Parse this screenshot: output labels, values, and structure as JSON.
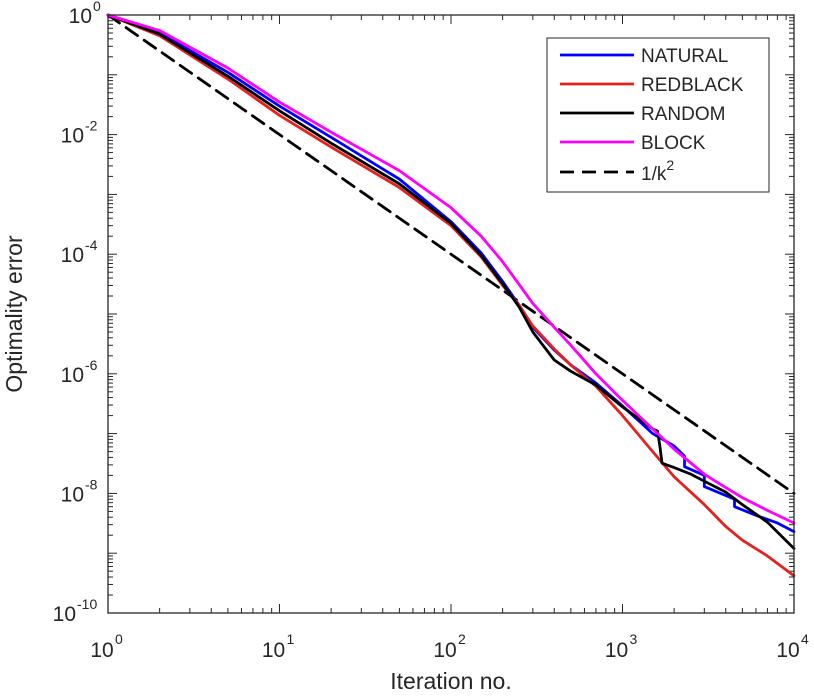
{
  "chart_data": {
    "type": "line",
    "title": "",
    "xlabel": "Iteration no.",
    "ylabel": "Optimality error",
    "xscale": "log",
    "yscale": "log",
    "xlim": [
      1,
      10000
    ],
    "ylim": [
      1e-10,
      1
    ],
    "grid": false,
    "legend_position": "top-right",
    "x_ticks": [
      {
        "base": "10",
        "exp": "0",
        "value": 1
      },
      {
        "base": "10",
        "exp": "1",
        "value": 10
      },
      {
        "base": "10",
        "exp": "2",
        "value": 100
      },
      {
        "base": "10",
        "exp": "3",
        "value": 1000
      },
      {
        "base": "10",
        "exp": "4",
        "value": 10000
      }
    ],
    "y_ticks": [
      {
        "base": "10",
        "exp": "0",
        "value": 1
      },
      {
        "base": "10",
        "exp": "-2",
        "value": 0.01
      },
      {
        "base": "10",
        "exp": "-4",
        "value": 0.0001
      },
      {
        "base": "10",
        "exp": "-6",
        "value": 1e-06
      },
      {
        "base": "10",
        "exp": "-8",
        "value": 1e-08
      },
      {
        "base": "10",
        "exp": "-10",
        "value": 1e-10
      }
    ],
    "series": [
      {
        "name": "NATURAL",
        "legend": "NATURAL",
        "color": "#0000ff",
        "dash": "solid",
        "x": [
          1,
          2,
          5,
          10,
          20,
          50,
          100,
          150,
          200,
          250,
          300,
          400,
          500,
          700,
          1000,
          1500,
          2000,
          2300,
          2300,
          3000,
          3000,
          4500,
          4500,
          6000,
          8000,
          10000
        ],
        "y": [
          1,
          0.5,
          0.11,
          0.03,
          0.009,
          0.0018,
          0.00035,
          0.000105,
          3.5e-05,
          1.4e-05,
          6e-06,
          2.5e-06,
          1.4e-06,
          7e-07,
          2.9e-07,
          1e-07,
          6.2e-08,
          4.2e-08,
          2.8e-08,
          2e-08,
          1.3e-08,
          8e-09,
          6e-09,
          4.3e-09,
          3.2e-09,
          2.3e-09
        ]
      },
      {
        "name": "REDBLACK",
        "legend": "REDBLACK",
        "color": "#e4211c",
        "dash": "solid",
        "x": [
          1,
          2,
          5,
          10,
          20,
          50,
          100,
          150,
          200,
          250,
          300,
          400,
          500,
          700,
          1000,
          1500,
          2000,
          3000,
          4000,
          5000,
          7000,
          10000
        ],
        "y": [
          1,
          0.45,
          0.085,
          0.021,
          0.0062,
          0.0013,
          0.0003,
          9e-05,
          3e-05,
          1.4e-05,
          6.3e-06,
          2.6e-06,
          1.4e-06,
          6.2e-07,
          2e-07,
          5e-08,
          1.9e-08,
          6.5e-09,
          2.8e-09,
          1.65e-09,
          9e-10,
          4.2e-10
        ]
      },
      {
        "name": "RANDOM",
        "legend": "RANDOM",
        "color": "#000000",
        "dash": "solid",
        "x": [
          1,
          2,
          5,
          10,
          20,
          50,
          100,
          150,
          200,
          250,
          300,
          400,
          500,
          700,
          1000,
          1500,
          1600,
          1650,
          1700,
          2000,
          2500,
          3000,
          4000,
          5000,
          7000,
          10000
        ],
        "y": [
          1,
          0.48,
          0.095,
          0.025,
          0.0072,
          0.0015,
          0.00033,
          9.5e-05,
          3.2e-05,
          1.3e-05,
          5e-06,
          1.7e-06,
          1.1e-06,
          6.5e-07,
          2.8e-07,
          1.2e-07,
          1.1e-07,
          6.3e-08,
          3.2e-08,
          2.7e-08,
          2.1e-08,
          1.6e-08,
          1.05e-08,
          6.5e-09,
          3.3e-09,
          1.2e-09
        ]
      },
      {
        "name": "BLOCK",
        "legend": "BLOCK",
        "color": "#ff00ff",
        "dash": "solid",
        "x": [
          1,
          2,
          5,
          10,
          20,
          50,
          100,
          150,
          200,
          250,
          300,
          400,
          500,
          700,
          1000,
          1500,
          2000,
          3000,
          4000,
          5000,
          7000,
          10000
        ],
        "y": [
          1,
          0.55,
          0.13,
          0.035,
          0.011,
          0.0025,
          0.0006,
          0.0002,
          7.5e-05,
          3.1e-05,
          1.5e-05,
          6e-06,
          3e-06,
          1e-06,
          3.6e-07,
          1.2e-07,
          5.5e-08,
          2.1e-08,
          1.25e-08,
          8.5e-09,
          5.2e-09,
          3.2e-09
        ]
      },
      {
        "name": "1/k^2",
        "legend": "1/k",
        "legend_sup": "2",
        "color": "#000000",
        "dash": "dashed",
        "x": [
          1,
          10000
        ],
        "y": [
          1,
          1e-08
        ]
      }
    ]
  }
}
